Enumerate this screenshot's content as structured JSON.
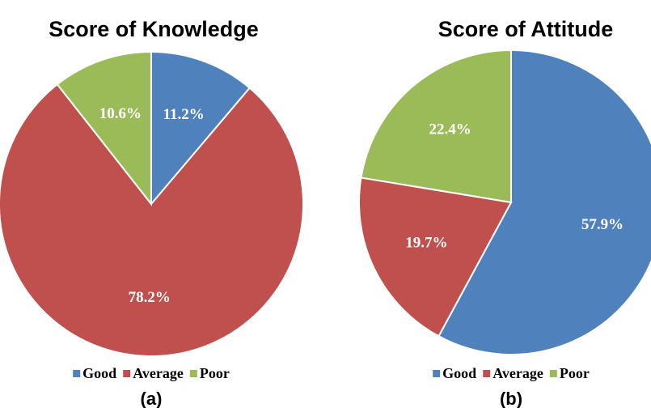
{
  "chart_data": [
    {
      "type": "pie",
      "title": "Score of Knowledge",
      "label": "(a)",
      "categories": [
        "Good",
        "Average",
        "Poor"
      ],
      "values": [
        11.2,
        78.2,
        10.6
      ],
      "value_labels": [
        "11.2%",
        "78.2%",
        "10.6%"
      ],
      "colors": [
        "#4f81bd",
        "#c0504d",
        "#9bbb59"
      ],
      "legend": "bottom"
    },
    {
      "type": "pie",
      "title": "Score of Attitude",
      "label": "(b)",
      "categories": [
        "Good",
        "Average",
        "Poor"
      ],
      "values": [
        57.9,
        19.7,
        22.4
      ],
      "value_labels": [
        "57.9%",
        "19.7%",
        "22.4%"
      ],
      "colors": [
        "#4f81bd",
        "#c0504d",
        "#9bbb59"
      ],
      "legend": "bottom"
    }
  ]
}
